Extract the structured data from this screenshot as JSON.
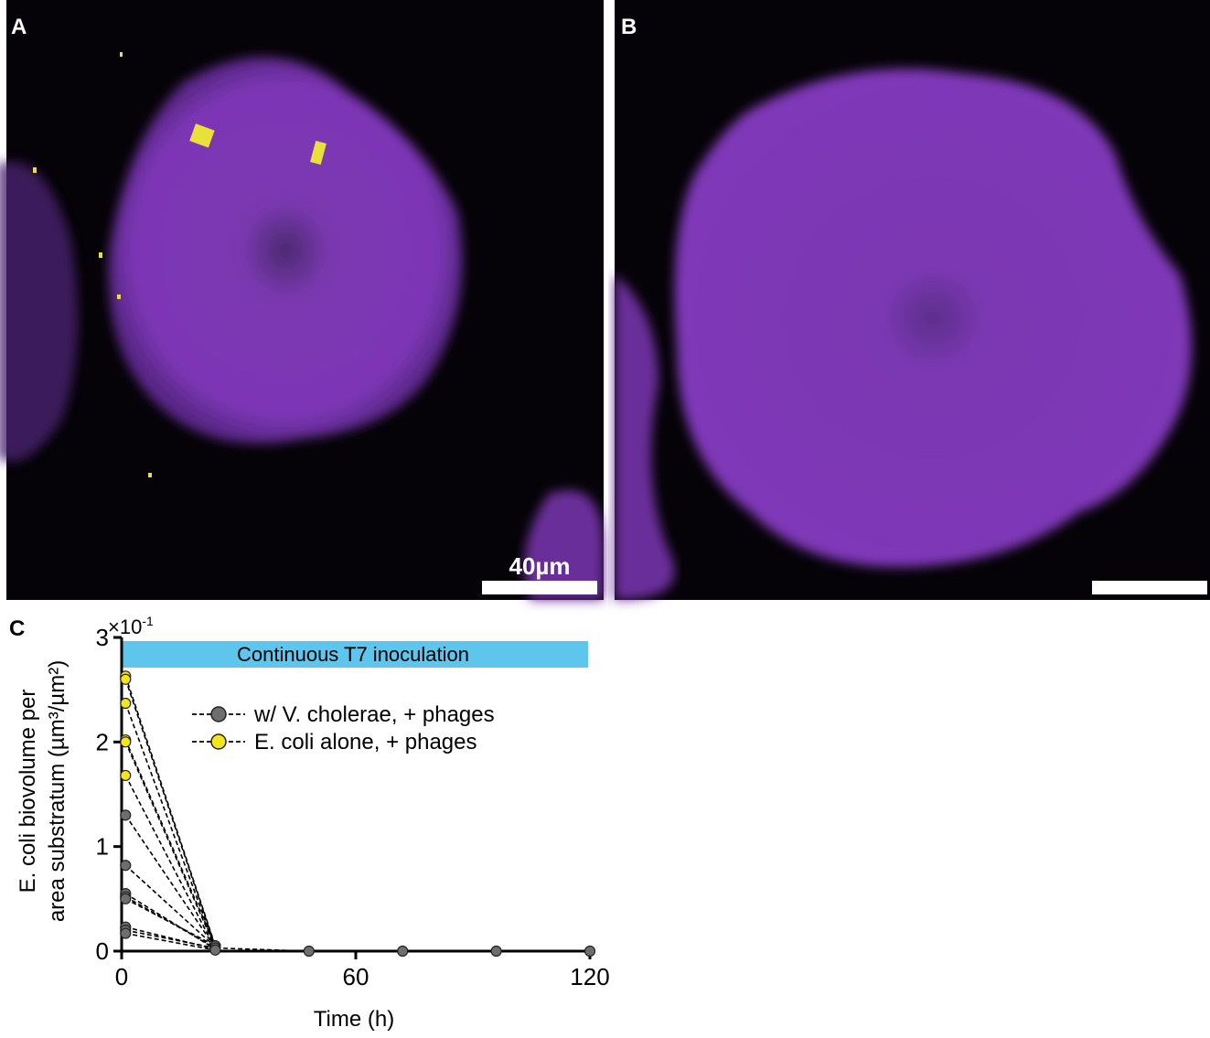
{
  "panels": {
    "a": "A",
    "b": "B",
    "c": "C"
  },
  "scale_bar": "40µm",
  "chart_data": {
    "type": "line",
    "y_multiplier": {
      "base": "×10",
      "exponent": "-1"
    },
    "y_label": [
      "E. coli biovolume per",
      "area substratum (µm³/µm²)"
    ],
    "x_label": "Time (h)",
    "annotation": "Continuous T7 inoculation",
    "x": [
      1,
      24,
      48,
      72,
      96,
      120
    ],
    "xlim": [
      0,
      120
    ],
    "xticks": [
      0,
      60,
      120
    ],
    "ylim": [
      0,
      3
    ],
    "yticks": [
      0,
      1,
      2,
      3
    ],
    "series": [
      {
        "name": "w/ V. cholerae, + phages",
        "color": "#6e6e6e",
        "replicates": [
          {
            "values": [
              1.3,
              0.03,
              0,
              0,
              0,
              0
            ]
          },
          {
            "values": [
              0.82,
              0.04,
              null,
              null,
              null,
              null
            ]
          },
          {
            "values": [
              0.55,
              0.02,
              null,
              null,
              null,
              null
            ]
          },
          {
            "values": [
              0.52,
              0.03,
              null,
              null,
              null,
              null
            ]
          },
          {
            "values": [
              0.5,
              0.05,
              null,
              null,
              null,
              null
            ]
          },
          {
            "values": [
              0.23,
              0.02,
              null,
              null,
              null,
              null
            ]
          },
          {
            "values": [
              0.2,
              0.03,
              null,
              null,
              null,
              null
            ]
          },
          {
            "values": [
              0.17,
              0.01,
              null,
              null,
              null,
              null
            ]
          }
        ]
      },
      {
        "name": "E. coli alone, + phages",
        "color": "#f5e61c",
        "replicates": [
          {
            "values": [
              2.63,
              0.05,
              null,
              null,
              null,
              null
            ]
          },
          {
            "values": [
              2.6,
              0.04,
              null,
              null,
              null,
              null
            ]
          },
          {
            "values": [
              2.37,
              0.03,
              null,
              null,
              null,
              null
            ]
          },
          {
            "values": [
              2.02,
              0.05,
              null,
              null,
              null,
              null
            ]
          },
          {
            "values": [
              2.0,
              0.03,
              null,
              null,
              null,
              null
            ]
          },
          {
            "values": [
              1.68,
              0.02,
              null,
              null,
              null,
              null
            ]
          }
        ]
      }
    ]
  }
}
